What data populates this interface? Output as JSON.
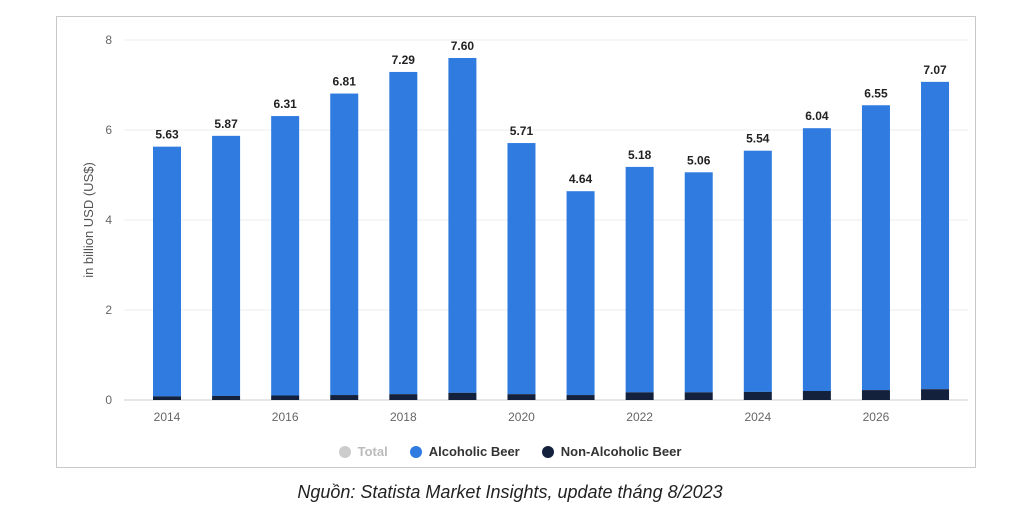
{
  "chart_data": {
    "type": "bar",
    "stacked": true,
    "x": [
      2014,
      2015,
      2016,
      2017,
      2018,
      2019,
      2020,
      2021,
      2022,
      2023,
      2024,
      2025,
      2026,
      2027
    ],
    "x_tick_labels": [
      "2014",
      "2016",
      "2018",
      "2020",
      "2022",
      "2024",
      "2026"
    ],
    "totals": [
      5.63,
      5.87,
      6.31,
      6.81,
      7.29,
      7.6,
      5.71,
      4.64,
      5.18,
      5.06,
      5.54,
      6.04,
      6.55,
      7.07
    ],
    "total_labels": [
      "5.63",
      "5.87",
      "6.31",
      "6.81",
      "7.29",
      "7.60",
      "5.71",
      "4.64",
      "5.18",
      "5.06",
      "5.54",
      "6.04",
      "6.55",
      "7.07"
    ],
    "series": [
      {
        "name": "Alcoholic Beer",
        "color": "#2f7be0",
        "values": [
          5.55,
          5.78,
          6.21,
          6.7,
          7.16,
          7.44,
          5.58,
          4.53,
          5.01,
          4.89,
          5.36,
          5.84,
          6.33,
          6.83
        ]
      },
      {
        "name": "Non-Alcoholic Beer",
        "color": "#14213d",
        "values": [
          0.08,
          0.09,
          0.1,
          0.11,
          0.13,
          0.16,
          0.13,
          0.11,
          0.17,
          0.17,
          0.18,
          0.2,
          0.22,
          0.24
        ]
      }
    ],
    "legend": [
      {
        "name": "Total",
        "color": "#cccccc",
        "active": false
      },
      {
        "name": "Alcoholic Beer",
        "color": "#2f7be0",
        "active": true
      },
      {
        "name": "Non-Alcoholic Beer",
        "color": "#14213d",
        "active": true
      }
    ],
    "ylabel": "in billion USD (US$)",
    "ylim": [
      0,
      8
    ],
    "yticks": [
      0,
      2,
      4,
      6,
      8
    ],
    "grid": true,
    "legend_position": "bottom"
  },
  "caption": "Nguồn: Statista Market Insights, update tháng 8/2023"
}
